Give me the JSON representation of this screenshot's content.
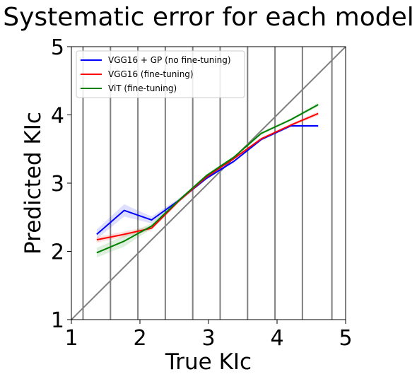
{
  "chart_data": {
    "type": "line",
    "title": "Systematic error for each model",
    "xlabel": "True KIc",
    "ylabel": "Predicted KIc",
    "xlim": [
      1,
      5
    ],
    "ylim": [
      1,
      5
    ],
    "xticks": [
      "1",
      "2",
      "3",
      "4",
      "5"
    ],
    "yticks": [
      "1",
      "2",
      "3",
      "4",
      "5"
    ],
    "grid": false,
    "legend_position": "upper-left",
    "bin_edges": [
      1.17,
      1.57,
      1.97,
      2.37,
      2.77,
      3.17,
      3.57,
      3.97,
      4.37,
      4.8
    ],
    "reference_line": {
      "x": [
        1,
        5
      ],
      "y": [
        1,
        5
      ],
      "color": "#808080"
    },
    "series": [
      {
        "name": "VGG16 + GP (no fine-tuning)",
        "color": "#0000ff",
        "x": [
          1.37,
          1.77,
          2.17,
          2.57,
          2.97,
          3.37,
          3.77,
          4.2,
          4.6
        ],
        "y": [
          2.25,
          2.6,
          2.46,
          2.75,
          3.07,
          3.32,
          3.64,
          3.84,
          3.84
        ],
        "band": [
          0.07,
          0.09,
          0.05,
          0.03,
          0.02,
          0.02,
          0.02,
          0.02,
          0.02
        ]
      },
      {
        "name": "VGG16 (fine-tuning)",
        "color": "#ff0000",
        "x": [
          1.37,
          1.77,
          2.17,
          2.57,
          2.97,
          3.37,
          3.77,
          4.2,
          4.6
        ],
        "y": [
          2.17,
          2.25,
          2.34,
          2.74,
          3.09,
          3.36,
          3.65,
          3.85,
          4.02
        ],
        "band": [
          0.04,
          0.04,
          0.03,
          0.02,
          0.02,
          0.02,
          0.02,
          0.02,
          0.03
        ]
      },
      {
        "name": "ViT (fine-tuning)",
        "color": "#008000",
        "x": [
          1.37,
          1.77,
          2.17,
          2.57,
          2.97,
          3.37,
          3.77,
          4.2,
          4.6
        ],
        "y": [
          1.98,
          2.15,
          2.37,
          2.75,
          3.11,
          3.38,
          3.73,
          3.93,
          4.15
        ],
        "band": [
          0.07,
          0.08,
          0.04,
          0.02,
          0.02,
          0.02,
          0.02,
          0.02,
          0.03
        ]
      }
    ]
  }
}
